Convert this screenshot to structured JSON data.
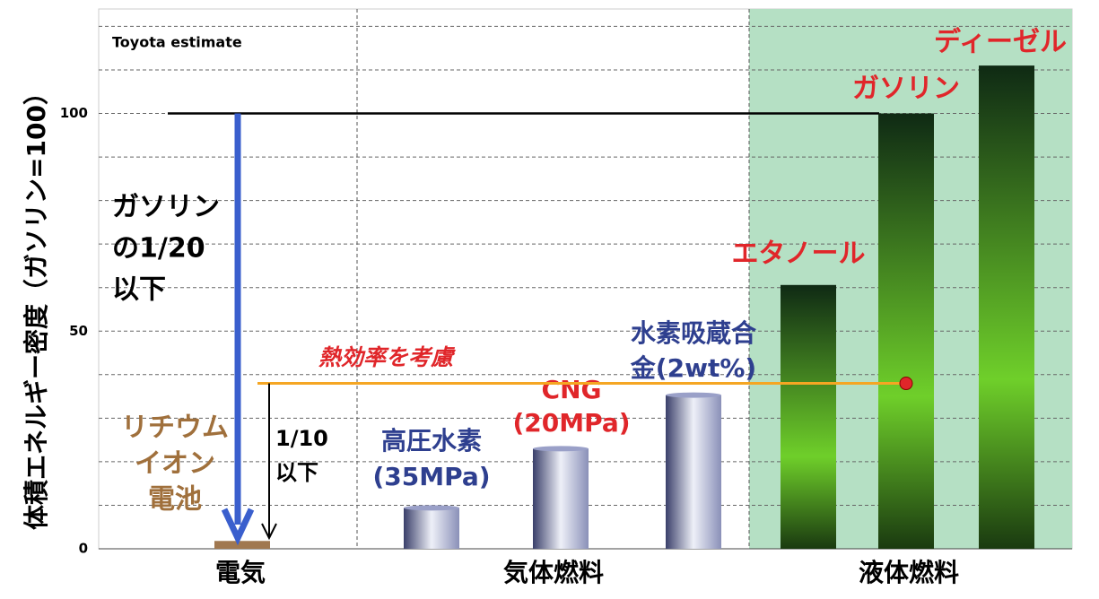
{
  "chart_data": {
    "type": "bar",
    "ylabel": "体積エネルギー密度（ガソリン=100）",
    "ylim": [
      0,
      124
    ],
    "yticks": [
      0,
      50,
      100
    ],
    "minor_yticks": [
      10,
      20,
      30,
      40,
      60,
      70,
      80,
      90,
      110,
      120
    ],
    "grid": true,
    "groups": [
      "電気",
      "気体燃料",
      "液体燃料"
    ],
    "bar_labels": [
      [
        "リチウム",
        "イオン",
        "電池"
      ],
      [
        "高圧水素",
        "(35MPa)"
      ],
      [
        "CNG",
        "(20MPa)"
      ],
      [
        "水素吸蔵合",
        "金(2wt%)"
      ],
      [
        "エタノール"
      ],
      [
        "ガソリン"
      ],
      [
        "ディーゼル"
      ]
    ],
    "values": [
      1.8,
      9.4,
      23,
      35.3,
      60.6,
      100,
      111
    ],
    "colors": [
      "#a07850",
      "#8a90b8",
      "#8a90b8",
      "#8a90b8",
      "#6fcf2a",
      "#6fcf2a",
      "#6fcf2a"
    ],
    "label_colors": [
      "#a0703c",
      "#2e3f8f",
      "#e0262a",
      "#2e3f8f",
      "#e0262a",
      "#e0262a",
      "#e0262a"
    ],
    "adjusted_level": 38,
    "annotations": {
      "source": "Toyota estimate",
      "gasoline_ratio": [
        "ガソリン",
        "の1/20",
        "以下"
      ],
      "adjusted_ratio": [
        "1/10",
        "以下"
      ],
      "thermal_efficiency": "熱効率を考慮"
    }
  }
}
